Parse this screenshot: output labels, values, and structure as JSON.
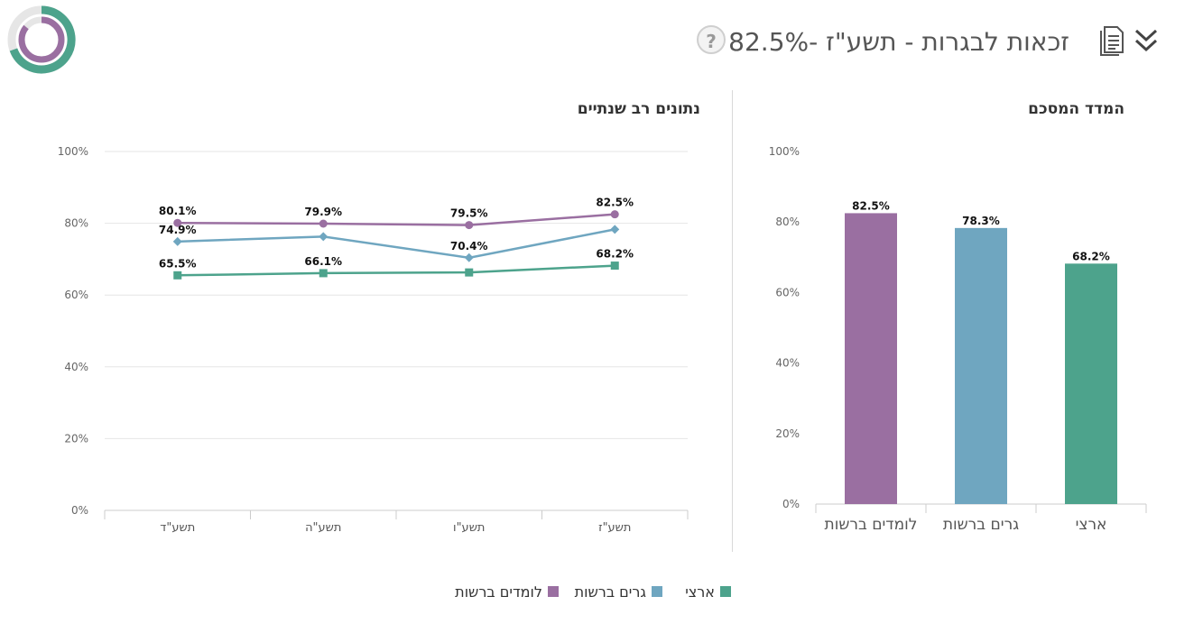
{
  "header": {
    "title_label": "זכאות לבגרות - תשע\"ז - ",
    "title_value": "82.5%",
    "help_label": "?",
    "icons": [
      "donut-chart-icon",
      "help-icon",
      "document-icon",
      "chevron-double-down-icon"
    ]
  },
  "colors": {
    "purple": "#9A6FA1",
    "blue": "#6FA6C0",
    "green": "#4DA38C"
  },
  "chart_data": [
    {
      "type": "line",
      "title": "נתונים רב שנתיים",
      "categories": [
        "תשע\"ד",
        "תשע\"ה",
        "תשע\"ו",
        "תשע\"ז"
      ],
      "ylim": [
        0,
        100
      ],
      "yticks": [
        "0%",
        "20%",
        "40%",
        "60%",
        "80%",
        "100%"
      ],
      "grid": true,
      "series": [
        {
          "name": "לומדים ברשות",
          "color": "#9A6FA1",
          "marker": "circle",
          "values": [
            80.1,
            79.9,
            79.5,
            82.5
          ],
          "labels": [
            "80.1%",
            "79.9%",
            "79.5%",
            "82.5%"
          ]
        },
        {
          "name": "גרים ברשות",
          "color": "#6FA6C0",
          "marker": "diamond",
          "values": [
            74.9,
            76.3,
            70.4,
            78.3
          ],
          "labels": [
            "74.9%",
            "",
            "70.4%",
            ""
          ]
        },
        {
          "name": "ארצי",
          "color": "#4DA38C",
          "marker": "square",
          "values": [
            65.5,
            66.1,
            66.3,
            68.2
          ],
          "labels": [
            "65.5%",
            "66.1%",
            "",
            "68.2%"
          ]
        }
      ]
    },
    {
      "type": "bar",
      "title": "המדד המסכם",
      "categories": [
        "לומדים ברשות",
        "גרים ברשות",
        "ארצי"
      ],
      "values": [
        82.5,
        78.3,
        68.2
      ],
      "labels": [
        "82.5%",
        "78.3%",
        "68.2%"
      ],
      "colors": [
        "#9A6FA1",
        "#6FA6C0",
        "#4DA38C"
      ],
      "ylim": [
        0,
        100
      ],
      "yticks": [
        "0%",
        "20%",
        "40%",
        "60%",
        "80%",
        "100%"
      ],
      "grid": false
    }
  ],
  "legend": [
    {
      "label": "לומדים ברשות",
      "color": "#9A6FA1"
    },
    {
      "label": "גרים ברשות",
      "color": "#6FA6C0"
    },
    {
      "label": "ארצי",
      "color": "#4DA38C"
    }
  ]
}
